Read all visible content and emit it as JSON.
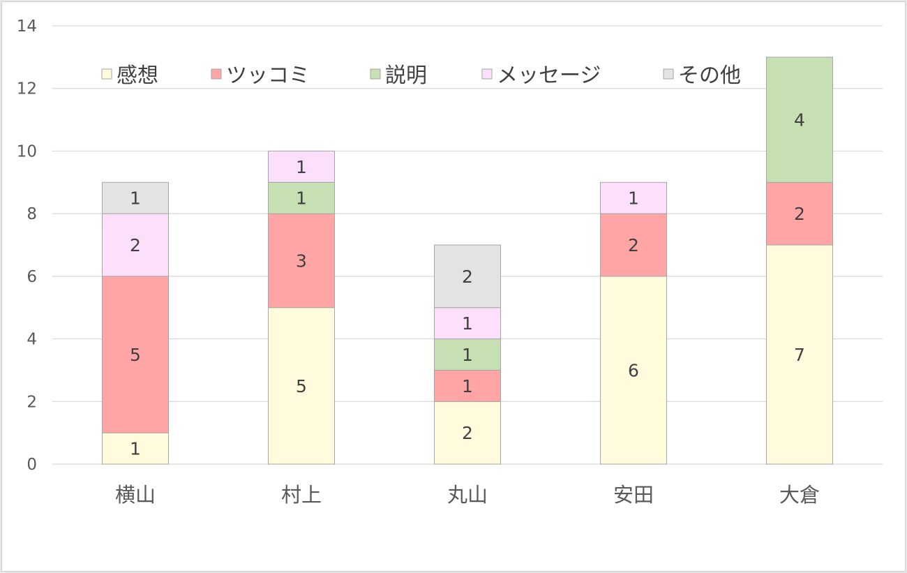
{
  "chart_data": {
    "type": "bar",
    "stacked": true,
    "categories": [
      "横山",
      "村上",
      "丸山",
      "安田",
      "大倉"
    ],
    "series": [
      {
        "name": "感想",
        "color": "#fffbdc",
        "values": [
          1,
          5,
          2,
          6,
          7
        ]
      },
      {
        "name": "ツッコミ",
        "color": "#ffa5a5",
        "values": [
          5,
          3,
          1,
          2,
          2
        ]
      },
      {
        "name": "説明",
        "color": "#c6e0b4",
        "values": [
          0,
          1,
          1,
          0,
          4
        ]
      },
      {
        "name": "メッセージ",
        "color": "#fce0fb",
        "values": [
          2,
          1,
          1,
          1,
          0
        ]
      },
      {
        "name": "その他",
        "color": "#e4e3e3",
        "values": [
          1,
          0,
          2,
          0,
          0
        ]
      }
    ],
    "ylim": [
      0,
      14
    ],
    "yticks": [
      0,
      2,
      4,
      6,
      8,
      10,
      12,
      14
    ],
    "grid": true,
    "legend_position": "top-inside",
    "data_labels": true
  }
}
